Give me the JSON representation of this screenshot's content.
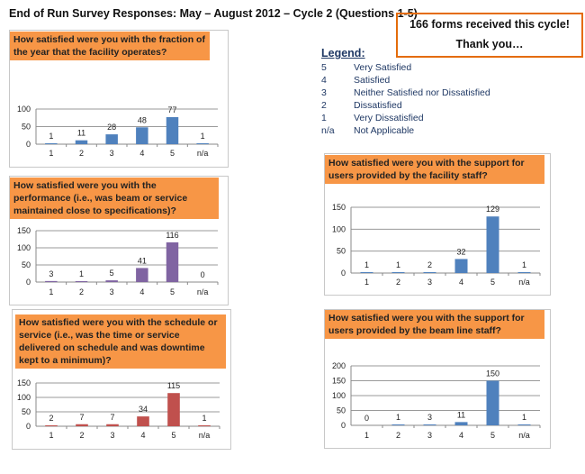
{
  "title": "End of Run Survey Responses: May – August 2012 – Cycle 2 (Questions 1-5)",
  "thanks": {
    "line1": "166 forms received this cycle!",
    "line2": "Thank you…"
  },
  "legend": {
    "heading": "Legend:",
    "items": [
      {
        "key": "5",
        "label": "Very Satisfied"
      },
      {
        "key": "4",
        "label": "Satisfied"
      },
      {
        "key": "3",
        "label": "Neither Satisfied nor Dissatisfied"
      },
      {
        "key": "2",
        "label": "Dissatisfied"
      },
      {
        "key": "1",
        "label": "Very Dissatisfied"
      },
      {
        "key": "n/a",
        "label": "Not Applicable"
      }
    ]
  },
  "chart_data": [
    {
      "type": "bar",
      "title": "How satisfied were you with the fraction of the year that the facility operates?",
      "categories": [
        "1",
        "2",
        "3",
        "4",
        "5",
        "n/a"
      ],
      "values": [
        1,
        11,
        28,
        48,
        77,
        1
      ],
      "ylim": [
        0,
        100
      ],
      "yticks": [
        0,
        50,
        100
      ],
      "color": "#4f81bd",
      "grid": true
    },
    {
      "type": "bar",
      "title": "How satisfied were you with the performance (i.e., was beam or service maintained close to specifications)?",
      "categories": [
        "1",
        "2",
        "3",
        "4",
        "5",
        "n/a"
      ],
      "values": [
        3,
        1,
        5,
        41,
        116,
        0
      ],
      "ylim": [
        0,
        150
      ],
      "yticks": [
        0,
        50,
        100,
        150
      ],
      "color": "#8064a2",
      "grid": true
    },
    {
      "type": "bar",
      "title": "How satisfied were you with the schedule or service (i.e., was the time or service delivered on schedule and was downtime kept to a minimum)?",
      "categories": [
        "1",
        "2",
        "3",
        "4",
        "5",
        "n/a"
      ],
      "values": [
        2,
        7,
        7,
        34,
        115,
        1
      ],
      "ylim": [
        0,
        150
      ],
      "yticks": [
        0,
        50,
        100,
        150
      ],
      "color": "#c0504d",
      "grid": true
    },
    {
      "type": "bar",
      "title": "How satisfied were you with the support for users provided by the facility staff?",
      "categories": [
        "1",
        "2",
        "3",
        "4",
        "5",
        "n/a"
      ],
      "values": [
        1,
        1,
        2,
        32,
        129,
        1
      ],
      "ylim": [
        0,
        150
      ],
      "yticks": [
        0,
        50,
        100,
        150
      ],
      "color": "#4f81bd",
      "grid": true
    },
    {
      "type": "bar",
      "title": "How satisfied were you with the support for users provided by the beam line staff?",
      "categories": [
        "1",
        "2",
        "3",
        "4",
        "5",
        "n/a"
      ],
      "values": [
        0,
        1,
        3,
        11,
        150,
        1
      ],
      "ylim": [
        0,
        200
      ],
      "yticks": [
        0,
        50,
        100,
        150,
        200
      ],
      "color": "#4f81bd",
      "grid": true
    }
  ]
}
